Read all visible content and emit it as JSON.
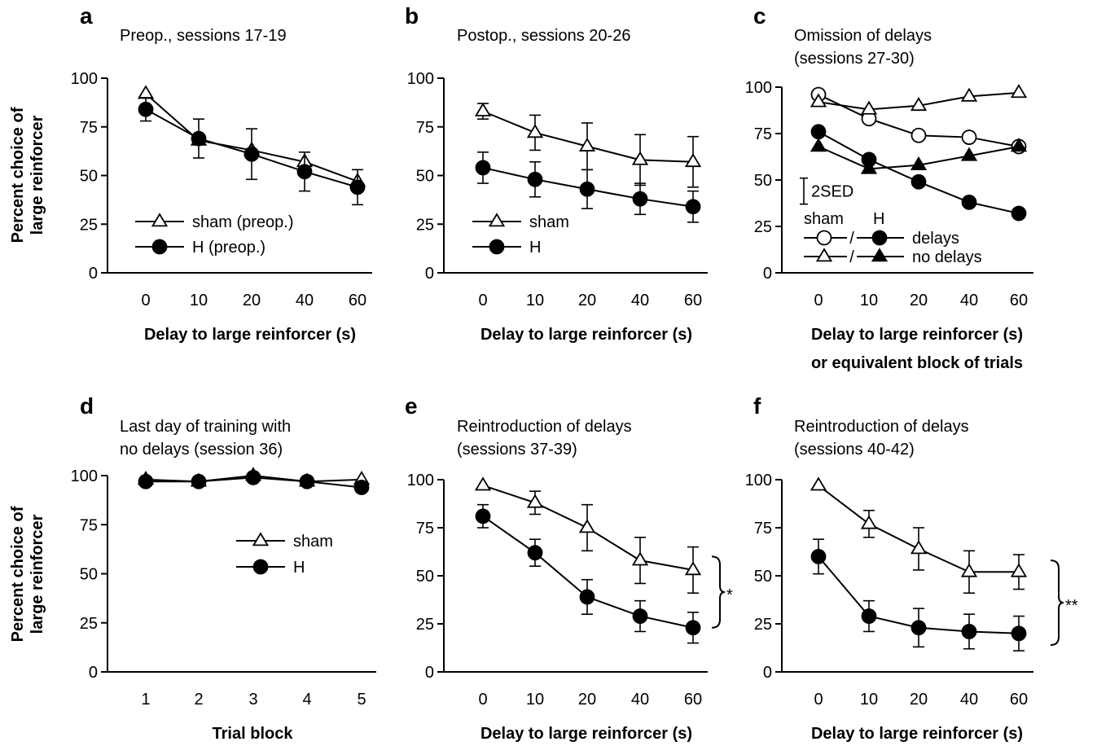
{
  "y_axis_label": [
    "Percent choice of",
    "large reinforcer"
  ],
  "chart_data": [
    {
      "type": "line",
      "letter": "a",
      "title": [
        "Preop., sessions 17-19"
      ],
      "xlabel": [
        "Delay to large reinforcer (s)"
      ],
      "categories": [
        "0",
        "10",
        "20",
        "40",
        "60"
      ],
      "ylim": [
        0,
        100
      ],
      "yticks": [
        "0",
        "25",
        "50",
        "75",
        "100"
      ],
      "series": [
        {
          "name": "sham (preop.)",
          "marker": "open-triangle",
          "values": [
            92,
            68,
            63,
            57,
            47
          ],
          "err": [
            0,
            0,
            0,
            0,
            0
          ]
        },
        {
          "name": "H (preop.)",
          "marker": "filled-circle",
          "values": [
            84,
            69,
            61,
            52,
            44
          ],
          "err": [
            6,
            10,
            13,
            10,
            9
          ]
        }
      ],
      "legend": {
        "placement": "bottom-left"
      },
      "annotations": []
    },
    {
      "type": "line",
      "letter": "b",
      "title": [
        "Postop., sessions 20-26"
      ],
      "xlabel": [
        "Delay to large reinforcer (s)"
      ],
      "categories": [
        "0",
        "10",
        "20",
        "40",
        "60"
      ],
      "ylim": [
        0,
        100
      ],
      "yticks": [
        "0",
        "25",
        "50",
        "75",
        "100"
      ],
      "series": [
        {
          "name": "sham",
          "marker": "open-triangle",
          "values": [
            83,
            72,
            65,
            58,
            57
          ],
          "err": [
            4,
            9,
            12,
            13,
            13
          ]
        },
        {
          "name": "H",
          "marker": "filled-circle",
          "values": [
            54,
            48,
            43,
            38,
            34
          ],
          "err": [
            8,
            9,
            10,
            8,
            8
          ]
        }
      ],
      "legend": {
        "placement": "bottom-left"
      },
      "annotations": []
    },
    {
      "type": "line",
      "letter": "c",
      "title": [
        "Omission of delays",
        "(sessions 27-30)"
      ],
      "xlabel": [
        "Delay to large reinforcer (s)",
        "or equivalent block of trials"
      ],
      "categories": [
        "0",
        "10",
        "20",
        "40",
        "60"
      ],
      "ylim": [
        0,
        100
      ],
      "yticks": [
        "0",
        "25",
        "50",
        "75",
        "100"
      ],
      "series": [
        {
          "name": "sham delays",
          "marker": "open-circle",
          "values": [
            96,
            83,
            74,
            73,
            68
          ],
          "err": [
            0,
            0,
            0,
            0,
            0
          ]
        },
        {
          "name": "H delays",
          "marker": "filled-circle",
          "values": [
            76,
            61,
            49,
            38,
            32
          ],
          "err": [
            0,
            0,
            0,
            0,
            0
          ]
        },
        {
          "name": "sham no delays",
          "marker": "open-triangle",
          "values": [
            92,
            88,
            90,
            95,
            97
          ],
          "err": [
            0,
            0,
            0,
            0,
            0
          ]
        },
        {
          "name": "H no delays",
          "marker": "filled-triangle",
          "values": [
            68,
            56,
            58,
            63,
            68
          ],
          "err": [
            0,
            0,
            0,
            0,
            0
          ]
        }
      ],
      "legend": {
        "placement": "bottom-left",
        "col_headers": [
          "sham",
          "H"
        ],
        "row_labels": [
          "delays",
          "no delays"
        ],
        "separator": "/"
      },
      "annotations": [
        {
          "label": "2SED",
          "span_units": 14,
          "center": 44
        }
      ]
    },
    {
      "type": "line",
      "letter": "d",
      "title": [
        "Last day of training with",
        "no delays (session 36)"
      ],
      "xlabel": [
        "Trial block"
      ],
      "categories": [
        "1",
        "2",
        "3",
        "4",
        "5"
      ],
      "ylim": [
        0,
        100
      ],
      "yticks": [
        "0",
        "25",
        "50",
        "75",
        "100"
      ],
      "series": [
        {
          "name": "sham",
          "marker": "open-triangle",
          "values": [
            98,
            97,
            100,
            97,
            98
          ],
          "err": [
            0,
            0,
            0,
            0,
            0
          ]
        },
        {
          "name": "H",
          "marker": "filled-circle",
          "values": [
            97,
            97,
            99,
            97,
            94
          ],
          "err": [
            0,
            0,
            0,
            0,
            0
          ]
        }
      ],
      "legend": {
        "placement": "center"
      },
      "annotations": []
    },
    {
      "type": "line",
      "letter": "e",
      "title": [
        "Reintroduction of delays",
        "(sessions 37-39)"
      ],
      "xlabel": [
        "Delay to large reinforcer (s)"
      ],
      "categories": [
        "0",
        "10",
        "20",
        "40",
        "60"
      ],
      "ylim": [
        0,
        100
      ],
      "yticks": [
        "0",
        "25",
        "50",
        "75",
        "100"
      ],
      "series": [
        {
          "name": "sham",
          "marker": "open-triangle",
          "values": [
            97,
            88,
            75,
            58,
            53
          ],
          "err": [
            0,
            6,
            12,
            12,
            12
          ]
        },
        {
          "name": "H",
          "marker": "filled-circle",
          "values": [
            81,
            62,
            39,
            29,
            23
          ],
          "err": [
            6,
            7,
            9,
            8,
            8
          ]
        }
      ],
      "legend": {
        "placement": "none"
      },
      "annotations": [
        {
          "label": "*",
          "from": 23,
          "to": 60
        }
      ]
    },
    {
      "type": "line",
      "letter": "f",
      "title": [
        "Reintroduction of delays",
        "(sessions 40-42)"
      ],
      "xlabel": [
        "Delay to large reinforcer (s)"
      ],
      "categories": [
        "0",
        "10",
        "20",
        "40",
        "60"
      ],
      "ylim": [
        0,
        100
      ],
      "yticks": [
        "0",
        "25",
        "50",
        "75",
        "100"
      ],
      "series": [
        {
          "name": "sham",
          "marker": "open-triangle",
          "values": [
            97,
            77,
            64,
            52,
            52
          ],
          "err": [
            0,
            7,
            11,
            11,
            9
          ]
        },
        {
          "name": "H",
          "marker": "filled-circle",
          "values": [
            60,
            29,
            23,
            21,
            20
          ],
          "err": [
            9,
            8,
            10,
            9,
            9
          ]
        }
      ],
      "legend": {
        "placement": "none"
      },
      "annotations": [
        {
          "label": "**",
          "from": 14,
          "to": 58
        }
      ]
    }
  ]
}
